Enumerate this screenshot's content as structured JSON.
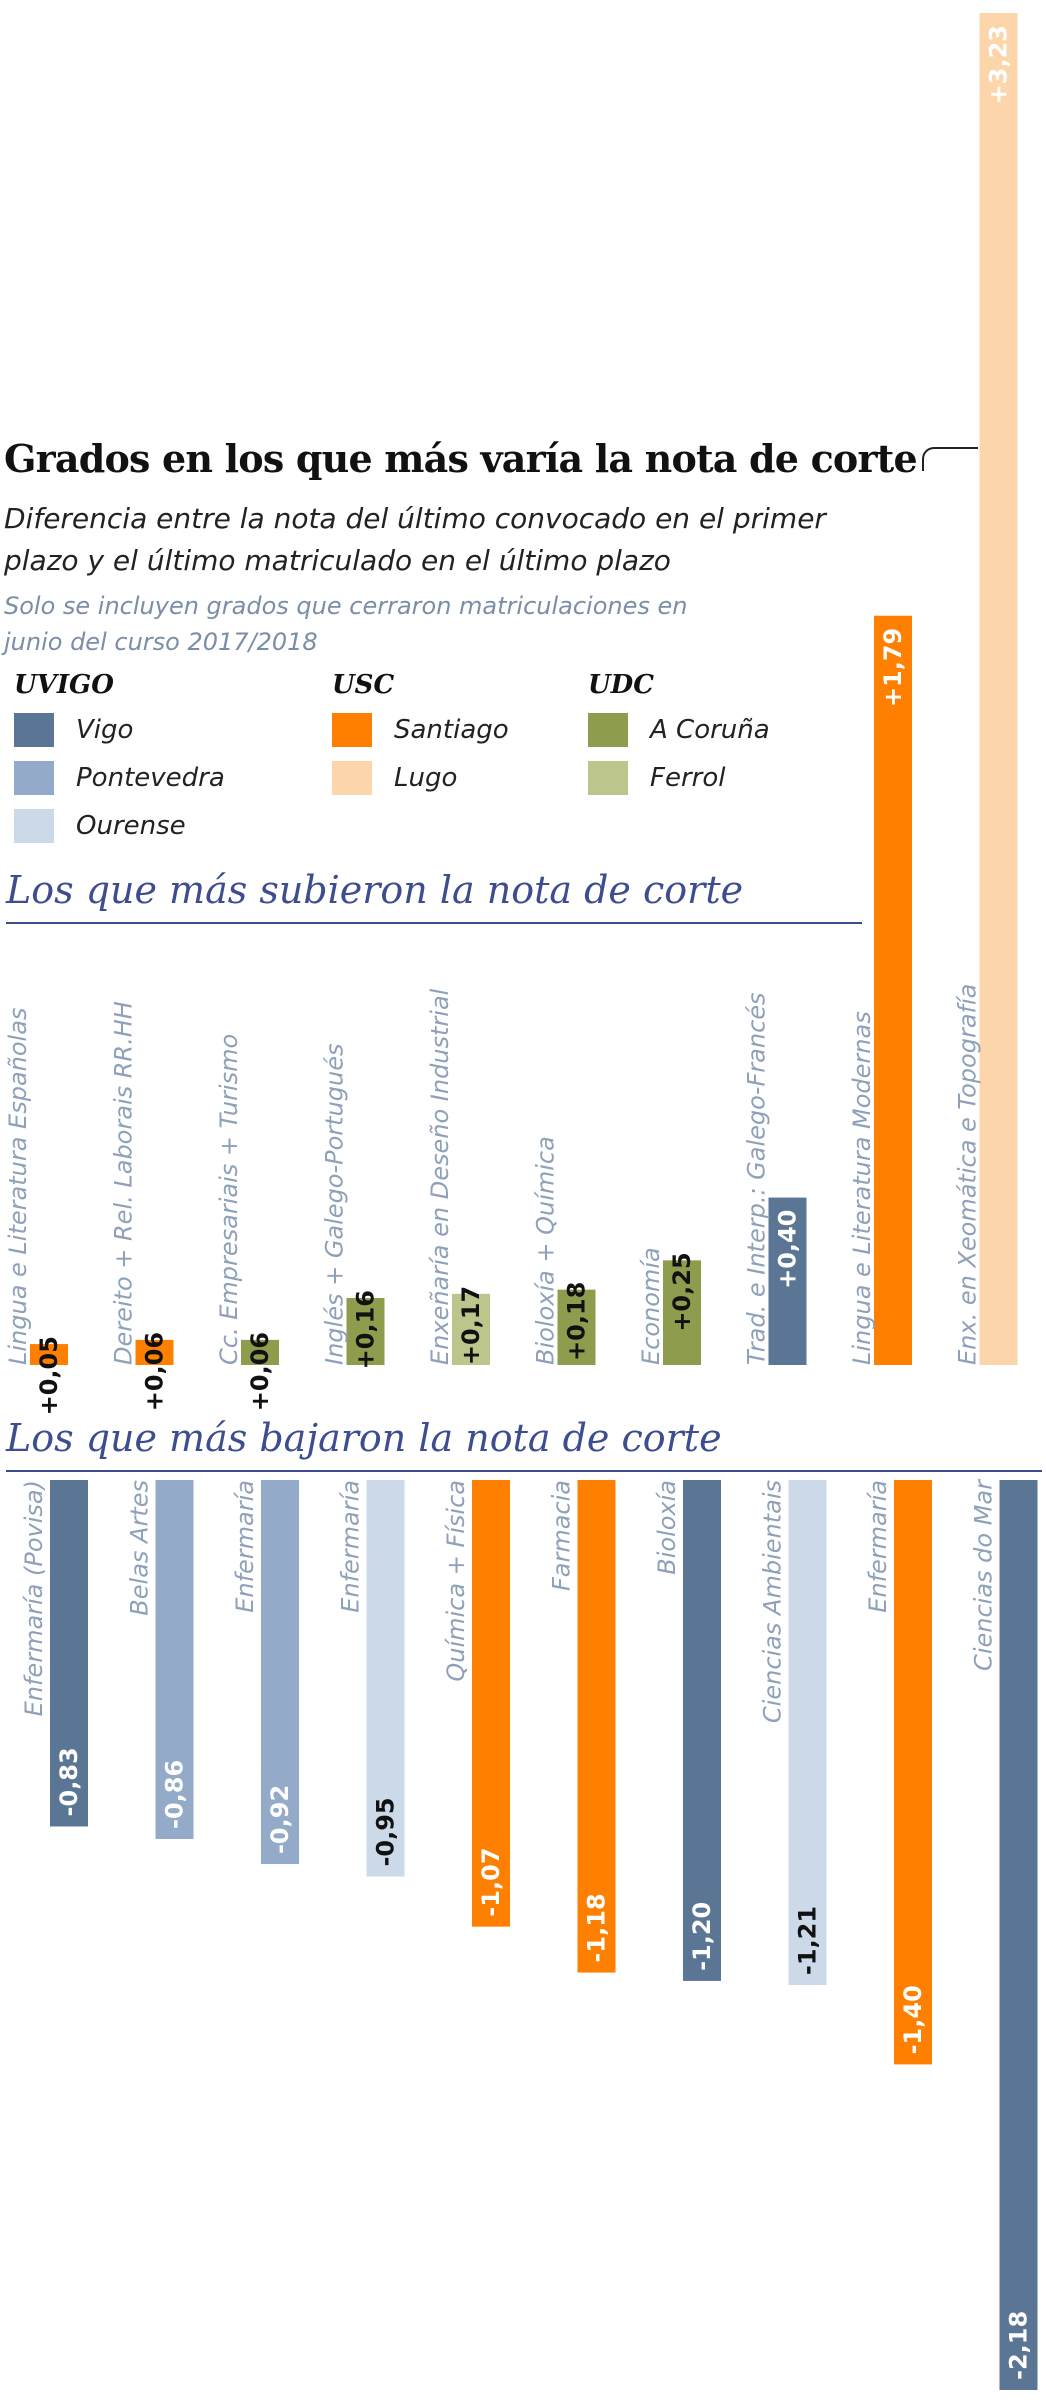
{
  "title": "Grados en los que más varía la nota de corte",
  "subtitle": "Diferencia entre la nota del último convocado en el primer plazo y el último matriculado en el último plazo",
  "note": "Solo se incluyen grados que cerraron matriculaciones en junio del curso 2017/2018",
  "legend": {
    "groups": [
      {
        "name": "UVIGO",
        "items": [
          {
            "label": "Vigo",
            "color": "#5b7595"
          },
          {
            "label": "Pontevedra",
            "color": "#93aac8"
          },
          {
            "label": "Ourense",
            "color": "#ccd9e8"
          }
        ]
      },
      {
        "name": "USC",
        "items": [
          {
            "label": "Santiago",
            "color": "#ff7f00"
          },
          {
            "label": "Lugo",
            "color": "#fdd5ab"
          }
        ]
      },
      {
        "name": "UDC",
        "items": [
          {
            "label": "A Coruña",
            "color": "#8e9c4e"
          },
          {
            "label": "Ferrol",
            "color": "#bcc58c"
          }
        ]
      }
    ]
  },
  "sections": {
    "up": "Los que más subieron la nota de corte",
    "down": "Los que más bajaron la nota de corte"
  },
  "chart_data": [
    {
      "type": "bar",
      "title": "Los que más subieron la nota de corte",
      "categories": [
        "Lingua e Literatura Españolas",
        "Dereito + Rel. Laborais RR.HH",
        "Cc. Empresariais + Turismo",
        "Inglés + Galego-Portugués",
        "Enxeñaría en Deseño Industrial",
        "Bioloxía + Química",
        "Economía",
        "Trad. e Interp.: Galego-Francés",
        "Lingua e Literatura Modernas",
        "Enx. en Xeomática e Topografía"
      ],
      "values": [
        0.05,
        0.06,
        0.06,
        0.16,
        0.17,
        0.18,
        0.25,
        0.4,
        1.79,
        3.23
      ],
      "value_labels": [
        "+0,05",
        "+0,06",
        "+0,06",
        "+0,16",
        "+0,17",
        "+0,18",
        "+0,25",
        "+0,40",
        "+1,79",
        "+3,23"
      ],
      "campus": [
        "Santiago",
        "Santiago",
        "A Coruña",
        "A Coruña",
        "Ferrol",
        "A Coruña",
        "A Coruña",
        "Vigo",
        "Santiago",
        "Lugo"
      ]
    },
    {
      "type": "bar",
      "title": "Los que más bajaron la nota de corte",
      "categories": [
        "Enfermaría (Povisa)",
        "Belas Artes",
        "Enfermaría",
        "Enfermaría",
        "Química + Física",
        "Farmacia",
        "Bioloxía",
        "Ciencias Ambientais",
        "Enfermaría",
        "Ciencias do Mar"
      ],
      "values": [
        -0.83,
        -0.86,
        -0.92,
        -0.95,
        -1.07,
        -1.18,
        -1.2,
        -1.21,
        -1.4,
        -2.18
      ],
      "value_labels": [
        "-0,83",
        "-0,86",
        "-0,92",
        "-0,95",
        "-1,07",
        "-1,18",
        "-1,20",
        "-1,21",
        "-1,40",
        "-2,18"
      ],
      "campus": [
        "Vigo",
        "Pontevedra",
        "Pontevedra",
        "Ourense",
        "Santiago",
        "Santiago",
        "Vigo",
        "Ourense",
        "Santiago",
        "Vigo"
      ]
    }
  ]
}
